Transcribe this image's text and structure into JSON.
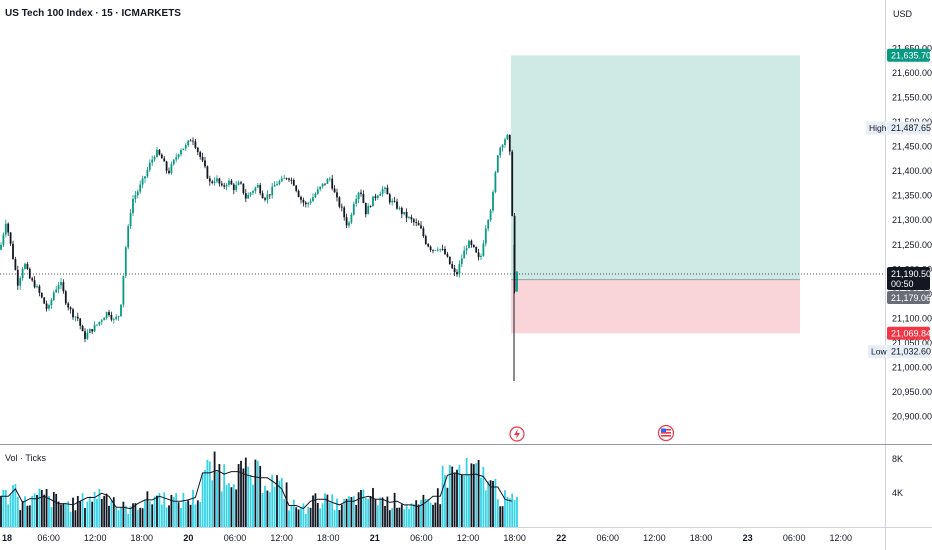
{
  "header": {
    "title": "US Tech 100 Index · 15 · ICMARKETS",
    "currency": "USD"
  },
  "volume_panel": {
    "title": "Vol · Ticks"
  },
  "tags": {
    "high_label": "High",
    "high_value": "21,487.65",
    "low_label": "Low",
    "low_value": "21,032.60",
    "target_value": "21,635.70",
    "last_price": "21,190.50",
    "countdown": "00:50",
    "entry_value": "21,179.06",
    "stop_value": "21,069.84"
  },
  "colors": {
    "up": "#089981",
    "down": "#131722",
    "profit_zone": "#cfeae4",
    "loss_zone": "#f9d5d9",
    "target_tag": "#089981",
    "stop_tag": "#f23645",
    "last_tag": "#131722",
    "entry_tag": "#6a6d78",
    "volume_up": "#33d3e8",
    "volume_down": "#131722"
  },
  "icons": [
    "lightning-icon",
    "us-flag-icon"
  ],
  "chart_data": {
    "type": "candlestick",
    "title": "US Tech 100 Index · 15 · ICMARKETS",
    "ylabel": "USD",
    "ylim": [
      20875,
      21675
    ],
    "y_ticks": [
      "21,650.00",
      "21,600.00",
      "21,550.00",
      "21,500.00",
      "21,450.00",
      "21,400.00",
      "21,350.00",
      "21,300.00",
      "21,250.00",
      "21,200.00",
      "21,150.00",
      "21,100.00",
      "21,050.00",
      "21,000.00",
      "20,950.00",
      "20,900.00"
    ],
    "y_tick_values": [
      21650,
      21600,
      21550,
      21500,
      21450,
      21400,
      21350,
      21300,
      21250,
      21200,
      21150,
      21100,
      21050,
      21000,
      20950,
      20900
    ],
    "x_ticks": [
      "18",
      "06:00",
      "12:00",
      "18:00",
      "20",
      "06:00",
      "12:00",
      "18:00",
      "21",
      "06:00",
      "12:00",
      "18:00",
      "22",
      "06:00",
      "12:00",
      "18:00",
      "23",
      "06:00",
      "12:00"
    ],
    "price_path": [
      [
        0,
        21240
      ],
      [
        6,
        21300
      ],
      [
        12,
        21235
      ],
      [
        18,
        21170
      ],
      [
        24,
        21215
      ],
      [
        30,
        21180
      ],
      [
        36,
        21165
      ],
      [
        42,
        21140
      ],
      [
        48,
        21115
      ],
      [
        54,
        21155
      ],
      [
        60,
        21175
      ],
      [
        66,
        21135
      ],
      [
        72,
        21110
      ],
      [
        78,
        21100
      ],
      [
        84,
        21060
      ],
      [
        90,
        21075
      ],
      [
        96,
        21085
      ],
      [
        102,
        21100
      ],
      [
        108,
        21115
      ],
      [
        114,
        21095
      ],
      [
        120,
        21110
      ],
      [
        126,
        21250
      ],
      [
        132,
        21340
      ],
      [
        138,
        21360
      ],
      [
        144,
        21385
      ],
      [
        150,
        21415
      ],
      [
        156,
        21440
      ],
      [
        162,
        21425
      ],
      [
        168,
        21395
      ],
      [
        174,
        21420
      ],
      [
        180,
        21445
      ],
      [
        186,
        21450
      ],
      [
        192,
        21470
      ],
      [
        198,
        21440
      ],
      [
        204,
        21410
      ],
      [
        210,
        21375
      ],
      [
        216,
        21385
      ],
      [
        222,
        21365
      ],
      [
        228,
        21380
      ],
      [
        234,
        21365
      ],
      [
        240,
        21375
      ],
      [
        246,
        21345
      ],
      [
        252,
        21360
      ],
      [
        258,
        21370
      ],
      [
        264,
        21345
      ],
      [
        270,
        21355
      ],
      [
        276,
        21375
      ],
      [
        282,
        21380
      ],
      [
        288,
        21390
      ],
      [
        294,
        21375
      ],
      [
        300,
        21345
      ],
      [
        306,
        21330
      ],
      [
        312,
        21345
      ],
      [
        318,
        21360
      ],
      [
        324,
        21375
      ],
      [
        330,
        21385
      ],
      [
        336,
        21345
      ],
      [
        342,
        21320
      ],
      [
        348,
        21285
      ],
      [
        354,
        21340
      ],
      [
        360,
        21365
      ],
      [
        366,
        21315
      ],
      [
        372,
        21340
      ],
      [
        378,
        21355
      ],
      [
        384,
        21365
      ],
      [
        390,
        21340
      ],
      [
        396,
        21330
      ],
      [
        402,
        21315
      ],
      [
        408,
        21305
      ],
      [
        414,
        21295
      ],
      [
        420,
        21285
      ],
      [
        426,
        21255
      ],
      [
        432,
        21240
      ],
      [
        438,
        21245
      ],
      [
        444,
        21235
      ],
      [
        450,
        21210
      ],
      [
        456,
        21185
      ],
      [
        462,
        21225
      ],
      [
        468,
        21255
      ],
      [
        474,
        21240
      ],
      [
        480,
        21215
      ],
      [
        486,
        21290
      ],
      [
        492,
        21335
      ],
      [
        498,
        21440
      ],
      [
        504,
        21465
      ],
      [
        508,
        21470
      ],
      [
        511,
        21410
      ],
      [
        513,
        21250
      ],
      [
        515,
        21130
      ],
      [
        517,
        21190
      ]
    ],
    "volume_levels": [
      0.5,
      0.62,
      0.4,
      0.46,
      0.5,
      0.44,
      0.38,
      0.36,
      0.42,
      0.48,
      0.55,
      0.5,
      0.32,
      0.3,
      0.38,
      0.44,
      0.5,
      0.46,
      0.42,
      0.44,
      0.48,
      0.88,
      0.92,
      0.86,
      0.9,
      0.85,
      0.82,
      0.8,
      0.72,
      0.62,
      0.35,
      0.3,
      0.42,
      0.45,
      0.4,
      0.36,
      0.42,
      0.47,
      0.5,
      0.45,
      0.4,
      0.42,
      0.36,
      0.33,
      0.4,
      0.5,
      0.84,
      0.88,
      0.85,
      0.86,
      0.82,
      0.65,
      0.45,
      0.42,
      0.4,
      0.36,
      0.33,
      0.42,
      0.5,
      0.55,
      0.5,
      0.72,
      0.86,
      0.92,
      0.9,
      0.95,
      0.96,
      0.8
    ],
    "position": {
      "target": 21635.7,
      "entry": 21179.06,
      "stop": 21069.84
    },
    "last_price": 21190.5,
    "high": 21487.65,
    "low": 21032.6
  }
}
